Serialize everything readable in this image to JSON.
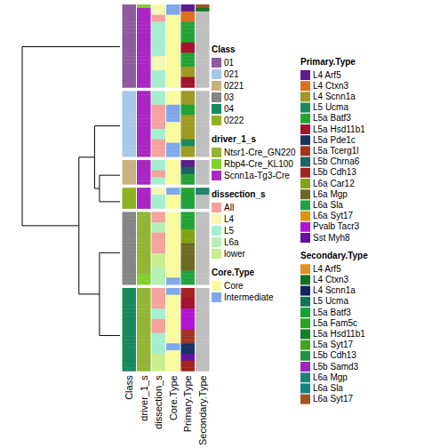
{
  "chart_data": {
    "type": "annotation_heatmap",
    "tick_labels": "x",
    "categories": [
      "Class",
      "driver_1_s",
      "dissection_s",
      "Core.Type",
      "Primary.Type",
      "Secondary.Type"
    ],
    "clusters": [
      {
        "name": "01",
        "rows": 24
      },
      {
        "name": "021",
        "rows": 19
      },
      {
        "name": "0221",
        "rows": 7
      },
      {
        "name": "0222",
        "rows": 6
      },
      {
        "name": "03",
        "rows": 21
      },
      {
        "name": "04",
        "rows": 24
      }
    ],
    "dendrogram": {
      "height": 1.0,
      "children": [
        {
          "leaf": "01"
        },
        {
          "height": 0.42,
          "children": [
            {
              "height": 0.26,
              "children": [
                {
                  "leaf": "021"
                },
                {
                  "height": 0.21,
                  "children": [
                    {
                      "leaf": "0221"
                    },
                    {
                      "leaf": "0222"
                    }
                  ]
                }
              ]
            },
            {
              "height": 0.21,
              "children": [
                {
                  "leaf": "03"
                },
                {
                  "leaf": "04"
                }
              ]
            }
          ]
        }
      ]
    },
    "columns": [
      {
        "legend": "Class",
        "runs": [
          [
            "01",
            24
          ],
          [
            "021",
            19
          ],
          [
            "0221",
            7
          ],
          [
            "0222",
            6
          ],
          [
            "03",
            21
          ],
          [
            "04",
            24
          ]
        ]
      },
      {
        "legend": "driver_1_s",
        "runs": [
          [
            "Rbp4-Cre_KL100",
            1
          ],
          [
            "Scnn1a-Tg3-Cre",
            23
          ],
          [
            "Scnn1a-Tg3-Cre",
            19
          ],
          [
            "Scnn1a-Tg3-Cre",
            7
          ],
          [
            "Scnn1a-Tg3-Cre",
            6
          ],
          [
            "Ntsr1-Cre_GN220",
            18
          ],
          [
            "Rbp4-Cre_KL100",
            3
          ],
          [
            "Ntsr1-Cre_GN220",
            24
          ]
        ]
      },
      {
        "legend": "dissection_s",
        "runs": [
          [
            "L4",
            3
          ],
          [
            "All",
            2
          ],
          [
            "L5",
            10
          ],
          [
            "L4",
            4
          ],
          [
            "L5",
            5
          ],
          [
            "L5",
            4
          ],
          [
            "All",
            7
          ],
          [
            "L5",
            3
          ],
          [
            "All",
            5
          ],
          [
            "L5",
            3
          ],
          [
            "All",
            2
          ],
          [
            "L5",
            2
          ],
          [
            "L4",
            2
          ],
          [
            "L5",
            4
          ],
          [
            "All",
            3
          ],
          [
            "L6a",
            3
          ],
          [
            "All",
            6
          ],
          [
            "lower",
            4
          ],
          [
            "L6a",
            5
          ],
          [
            "All",
            6
          ],
          [
            "L5",
            3
          ],
          [
            "All",
            4
          ],
          [
            "L5",
            6
          ],
          [
            "lower",
            5
          ]
        ]
      },
      {
        "legend": "Core.Type",
        "runs": [
          [
            "Intermediate",
            3
          ],
          [
            "Core",
            21
          ],
          [
            "Core",
            4
          ],
          [
            "Intermediate",
            5
          ],
          [
            "Core",
            6
          ],
          [
            "Intermediate",
            4
          ],
          [
            "Core",
            7
          ],
          [
            "Intermediate",
            2
          ],
          [
            "Core",
            4
          ],
          [
            "Core",
            19
          ],
          [
            "Intermediate",
            2
          ],
          [
            "Intermediate",
            2
          ],
          [
            "Core",
            14
          ],
          [
            "Intermediate",
            2
          ],
          [
            "Core",
            6
          ]
        ]
      },
      {
        "legend": "Primary.Type",
        "runs": [
          [
            "L4 Arf5",
            2
          ],
          [
            "L4 Ctxn3",
            3
          ],
          [
            "L5a Batf3",
            6
          ],
          [
            "L5a Hsd11b1",
            3
          ],
          [
            "L5a Batf3",
            4
          ],
          [
            "L4 Scnn1a",
            3
          ],
          [
            "L5a Hsd11b1",
            3
          ],
          [
            "L4 Scnn1a",
            4
          ],
          [
            "L5a Batf3",
            3
          ],
          [
            "L4 Scnn1a",
            7
          ],
          [
            "L5 Ucma",
            2
          ],
          [
            "L4 Scnn1a",
            3
          ],
          [
            "L4 Arf5",
            2
          ],
          [
            "L5b Chrna6",
            2
          ],
          [
            "L5a Batf3",
            3
          ],
          [
            "L5a Batf3",
            4
          ],
          [
            "L6a Sla",
            2
          ],
          [
            "L5a Batf3",
            5
          ],
          [
            "L6a Car12",
            4
          ],
          [
            "L6a Mgp",
            8
          ],
          [
            "L6a Sla",
            4
          ],
          [
            "L5b Cdh13",
            3
          ],
          [
            "L5a Hsd11b1",
            3
          ],
          [
            "Pvalb Tacr3",
            6
          ],
          [
            "L5a Tcerg1l",
            4
          ],
          [
            "L5a Pde1c",
            3
          ],
          [
            "Sst Myh8",
            2
          ],
          [
            "L5b Cdh13",
            3
          ]
        ]
      },
      {
        "legend": "Secondary.Type",
        "runs": [
          [
            "L6a Syt17",
            1
          ],
          [
            "L4 Ctxn3",
            1
          ],
          [
            null,
            22
          ],
          [
            null,
            19
          ],
          [
            null,
            7
          ],
          [
            "L6a Mgp",
            2
          ],
          [
            null,
            4
          ],
          [
            null,
            21
          ],
          [
            null,
            24
          ]
        ]
      }
    ],
    "legends": [
      {
        "title": "Class",
        "items": [
          {
            "label": "01",
            "color": "#8E5B9E"
          },
          {
            "label": "021",
            "color": "#A6C8E8"
          },
          {
            "label": "0221",
            "color": "#C6B27E"
          },
          {
            "label": "03",
            "color": "#858585"
          },
          {
            "label": "04",
            "color": "#178A5C"
          },
          {
            "label": "0222",
            "color": "#8DB320"
          }
        ]
      },
      {
        "title": "driver_1_s",
        "items": [
          {
            "label": "Ntsr1-Cre_GN220",
            "color": "#93B534"
          },
          {
            "label": "Rbp4-Cre_KL100",
            "color": "#7FD22A"
          },
          {
            "label": "Scnn1a-Tg3-Cre",
            "color": "#A926C4"
          }
        ]
      },
      {
        "title": "dissection_s",
        "items": [
          {
            "label": "All",
            "color": "#F4A29C"
          },
          {
            "label": "L4",
            "color": "#F6F7B2"
          },
          {
            "label": "L5",
            "color": "#A3EFD0"
          },
          {
            "label": "L6a",
            "color": "#B4F0B4"
          },
          {
            "label": "lower",
            "color": "#C9EE8E"
          }
        ]
      },
      {
        "title": "Core.Type",
        "items": [
          {
            "label": "Core",
            "color": "#FAFA9E"
          },
          {
            "label": "Intermediate",
            "color": "#7EA8EA"
          }
        ]
      },
      {
        "title": "Primary.Type",
        "items": [
          {
            "label": "L4 Arf5",
            "color": "#5B1C8E"
          },
          {
            "label": "L4 Ctxn3",
            "color": "#DD6F1E"
          },
          {
            "label": "L4 Scnn1a",
            "color": "#9C9A22"
          },
          {
            "label": "L5 Ucma",
            "color": "#1A8A5A"
          },
          {
            "label": "L5a Batf3",
            "color": "#22A335"
          },
          {
            "label": "L5a Hsd11b1",
            "color": "#A3122F"
          },
          {
            "label": "L5a Pde1c",
            "color": "#163462"
          },
          {
            "label": "L5a Tcerg1l",
            "color": "#A3331C"
          },
          {
            "label": "L5b Chrna6",
            "color": "#1A6464"
          },
          {
            "label": "L5b Cdh13",
            "color": "#A32222"
          },
          {
            "label": "L6a Car12",
            "color": "#82A214"
          },
          {
            "label": "L6a Mgp",
            "color": "#6C6A22"
          },
          {
            "label": "L6a Sla",
            "color": "#22A242"
          },
          {
            "label": "L6a Syt17",
            "color": "#E0920F"
          },
          {
            "label": "Pvalb Tacr3",
            "color": "#B312D2"
          },
          {
            "label": "Sst Myh8",
            "color": "#6312A3"
          }
        ]
      },
      {
        "title": "Secondary.Type",
        "items": [
          {
            "label": "L4 Arf5",
            "color": "#E09222"
          },
          {
            "label": "L4 Ctxn3",
            "color": "#137222"
          },
          {
            "label": "L4 Scnn1a",
            "color": "#122262"
          },
          {
            "label": "L5 Ucma",
            "color": "#127252"
          },
          {
            "label": "L5a Batf3",
            "color": "#12A332"
          },
          {
            "label": "L5a Fam5c",
            "color": "#2AA322"
          },
          {
            "label": "L5a Hsd11b1",
            "color": "#128222"
          },
          {
            "label": "L5a Syt17",
            "color": "#42A322"
          },
          {
            "label": "L5b Cdh13",
            "color": "#229242"
          },
          {
            "label": "L5b Samd3",
            "color": "#A322C2"
          },
          {
            "label": "L6a Mgp",
            "color": "#228272"
          },
          {
            "label": "L6a Sla",
            "color": "#128282"
          },
          {
            "label": "L6a Syt17",
            "color": "#A35222"
          }
        ]
      }
    ]
  }
}
